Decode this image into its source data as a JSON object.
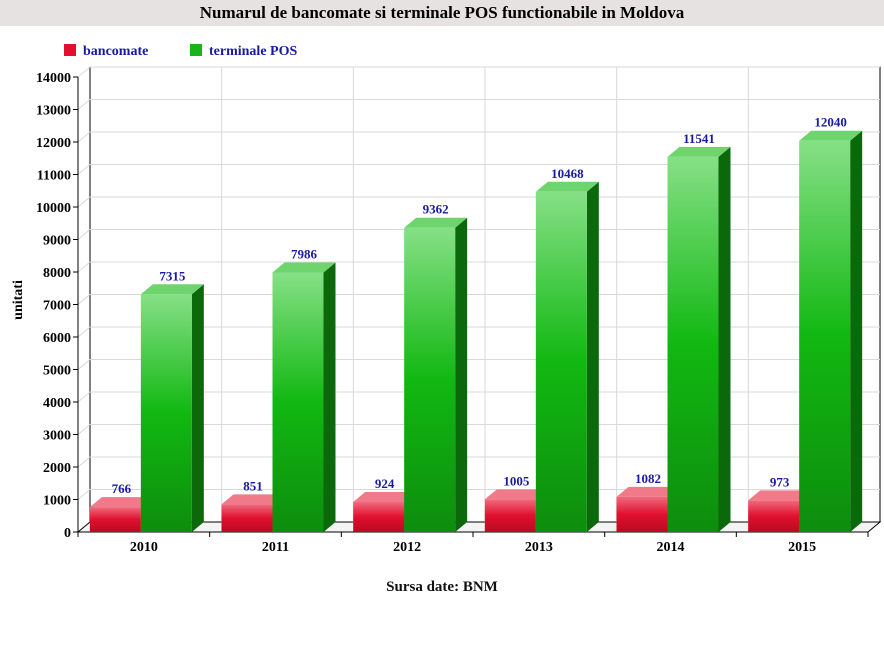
{
  "chart_data": {
    "type": "bar",
    "title": "Numarul de bancomate si terminale POS functionabile in Moldova",
    "ylabel": "unitati",
    "xlabel": "",
    "categories": [
      "2010",
      "2011",
      "2012",
      "2013",
      "2014",
      "2015"
    ],
    "series": [
      {
        "name": "bancomate",
        "values": [
          766,
          851,
          924,
          1005,
          1082,
          973
        ]
      },
      {
        "name": "terminale POS",
        "values": [
          7315,
          7986,
          9362,
          10468,
          11541,
          12040
        ]
      }
    ],
    "ylim": [
      0,
      14000
    ],
    "ytick_step": 1000,
    "grid": true,
    "legend_position": "top-left",
    "source": "Sursa date: BNM",
    "colors": {
      "bancomate": "#e0102e",
      "terminale POS": "#19b419",
      "data_label": "#1a1aa0",
      "title_background": "#e6e2e2"
    }
  }
}
